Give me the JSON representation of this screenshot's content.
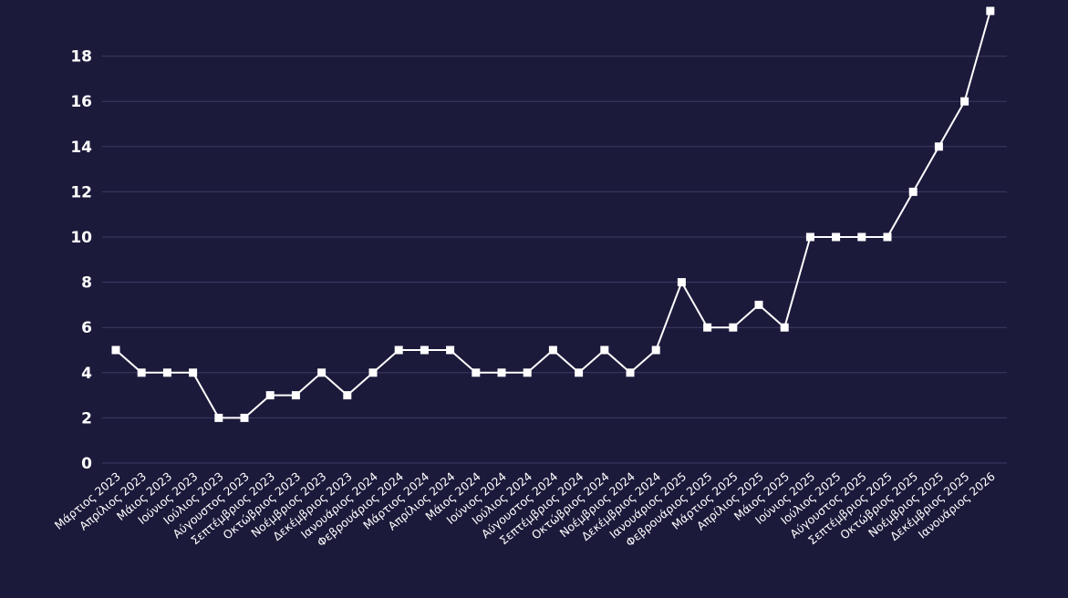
{
  "theme": {
    "background": "#1c1a3b",
    "line_color": "#ffffff",
    "grid_color": "#3d3b63",
    "text_color": "#ffffff"
  },
  "chart_data": {
    "type": "line",
    "title": "",
    "xlabel": "",
    "ylabel": "",
    "grid": "horizontal",
    "marker": "square",
    "ylim": [
      0,
      20
    ],
    "yticks": [
      0,
      2,
      4,
      6,
      8,
      10,
      12,
      14,
      16,
      18
    ],
    "categories": [
      "Μάρτιος 2023",
      "Απρίλιος 2023",
      "Μάιος 2023",
      "Ιούνιος 2023",
      "Ιούλιος 2023",
      "Αύγουστος 2023",
      "Σεπτέμβριος 2023",
      "Οκτώβριος 2023",
      "Νοέμβριος 2023",
      "Δεκέμβριος 2023",
      "Ιανουάριος 2024",
      "Φεβρουάριος 2024",
      "Μάρτιος 2024",
      "Απρίλιος 2024",
      "Μάιος 2024",
      "Ιούνιος 2024",
      "Ιούλιος 2024",
      "Αύγουστος 2024",
      "Σεπτέμβριος 2024",
      "Οκτώβριος 2024",
      "Νοέμβριος 2024",
      "Δεκέμβριος 2024",
      "Ιανουάριος 2025",
      "Φεβρουάριος 2025",
      "Μάρτιος 2025",
      "Απρίλιος 2025",
      "Μάιος 2025",
      "Ιούνιος 2025",
      "Ιούλιος 2025",
      "Αύγουστος 2025",
      "Σεπτέμβριος 2025",
      "Οκτώβριος 2025",
      "Νοέμβριος 2025",
      "Δεκέμβριος 2025",
      "Ιανουάριος 2026"
    ],
    "series": [
      {
        "values": [
          5,
          4,
          4,
          4,
          2,
          2,
          3,
          3,
          4,
          3,
          4,
          5,
          5,
          5,
          4,
          4,
          4,
          5,
          4,
          5,
          4,
          5,
          8,
          6,
          6,
          7,
          6,
          10,
          10,
          10,
          10,
          12,
          14,
          16,
          20
        ]
      }
    ]
  }
}
